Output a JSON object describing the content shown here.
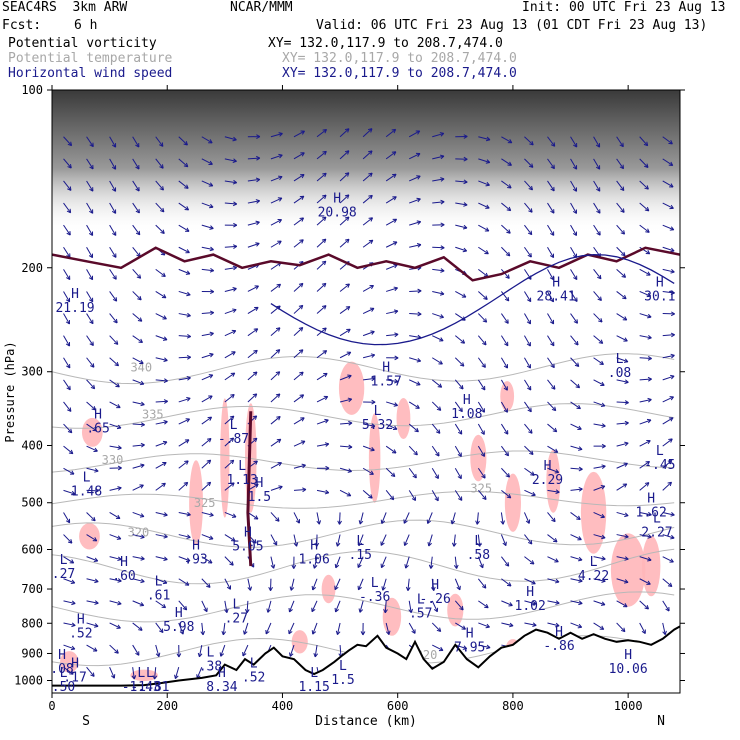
{
  "header": {
    "model": "SEAC4RS  3km ARW",
    "org": "NCAR/MMM",
    "init": "Init: 00 UTC Fri 23 Aug 13",
    "fcst_label": "Fcst:",
    "fcst_value": "6 h",
    "valid": "Valid: 06 UTC Fri 23 Aug 13 (01 CDT Fri 23 Aug 13)"
  },
  "fields": [
    {
      "name": "Potential vorticity",
      "xy": "XY= 132.0,117.9 to 208.7,474.0",
      "color": "#000000"
    },
    {
      "name": "Potential temperature",
      "xy": "XY= 132.0,117.9 to 208.7,474.0",
      "color": "#a8a8a8"
    },
    {
      "name": "Horizontal wind speed",
      "xy": "XY= 132.0,117.9 to 208.7,474.0",
      "color": "#1a1a8c"
    }
  ],
  "chart_data": {
    "type": "cross-section",
    "xlabel": "Distance (km)",
    "ylabel": "Pressure (hPa)",
    "x_ticks": [
      0,
      200,
      400,
      600,
      800,
      1000
    ],
    "y_ticks": [
      100,
      200,
      300,
      400,
      500,
      600,
      700,
      800,
      900,
      1000
    ],
    "xlim": [
      0,
      1090
    ],
    "ylim": [
      1050,
      100
    ],
    "y_scale": "log",
    "left_end_label": "S",
    "right_end_label": "N",
    "theta_contours": [
      {
        "label": "340",
        "x": 155,
        "p": 300
      },
      {
        "label": "335",
        "x": 175,
        "p": 360
      },
      {
        "label": "330",
        "x": 105,
        "p": 430
      },
      {
        "label": "325",
        "x": 265,
        "p": 508
      },
      {
        "label": "325",
        "x": 745,
        "p": 480
      },
      {
        "label": "320",
        "x": 150,
        "p": 570
      },
      {
        "label": "320",
        "x": 650,
        "p": 920
      }
    ],
    "extrema": [
      {
        "label": "H",
        "value": "21.19",
        "x": 40,
        "p": 225
      },
      {
        "label": "H",
        "value": "20.98",
        "x": 495,
        "p": 155
      },
      {
        "label": "H",
        "value": "28.41",
        "x": 875,
        "p": 215
      },
      {
        "label": "H",
        "value": "30.1",
        "x": 1055,
        "p": 215
      },
      {
        "label": "H",
        "value": ".65",
        "x": 80,
        "p": 360
      },
      {
        "label": "L",
        "value": "-.87",
        "x": 315,
        "p": 375
      },
      {
        "label": "H",
        "value": "1.57",
        "x": 580,
        "p": 300
      },
      {
        "label": "L",
        "value": "5.32",
        "x": 565,
        "p": 355
      },
      {
        "label": "H",
        "value": "1.08",
        "x": 720,
        "p": 340
      },
      {
        "label": "L",
        "value": ".08",
        "x": 985,
        "p": 290
      },
      {
        "label": "L",
        "value": "1.48",
        "x": 60,
        "p": 460
      },
      {
        "label": "L",
        "value": "1.13",
        "x": 330,
        "p": 440
      },
      {
        "label": "H",
        "value": "2.29",
        "x": 860,
        "p": 440
      },
      {
        "label": "L",
        "value": "-.45",
        "x": 1055,
        "p": 415
      },
      {
        "label": "H",
        "value": "1.5",
        "x": 360,
        "p": 470
      },
      {
        "label": "H",
        "value": "5.05",
        "x": 340,
        "p": 570
      },
      {
        "label": "H",
        "value": "1.62",
        "x": 1040,
        "p": 500
      },
      {
        "label": "L",
        "value": "2.27",
        "x": 1050,
        "p": 540
      },
      {
        "label": "H",
        "value": ".93",
        "x": 250,
        "p": 600
      },
      {
        "label": "H",
        "value": "1.06",
        "x": 455,
        "p": 600
      },
      {
        "label": "L",
        "value": ".15",
        "x": 535,
        "p": 590
      },
      {
        "label": "L",
        "value": ".58",
        "x": 740,
        "p": 590
      },
      {
        "label": "L",
        "value": ".27",
        "x": 20,
        "p": 635
      },
      {
        "label": "H",
        "value": ".60",
        "x": 125,
        "p": 640
      },
      {
        "label": "L",
        "value": "4.22",
        "x": 940,
        "p": 640
      },
      {
        "label": "L",
        "value": ".61",
        "x": 185,
        "p": 690
      },
      {
        "label": "L",
        "value": "-.36",
        "x": 560,
        "p": 695
      },
      {
        "label": "H",
        "value": "-.26",
        "x": 665,
        "p": 700
      },
      {
        "label": "H",
        "value": "1.02",
        "x": 830,
        "p": 720
      },
      {
        "label": "L",
        "value": ".57",
        "x": 640,
        "p": 740
      },
      {
        "label": "H",
        "value": "5.98",
        "x": 220,
        "p": 780
      },
      {
        "label": "L",
        "value": ".27",
        "x": 320,
        "p": 755
      },
      {
        "label": "H",
        "value": ".52",
        "x": 50,
        "p": 800
      },
      {
        "label": "H",
        "value": "7.95",
        "x": 725,
        "p": 845
      },
      {
        "label": "H",
        "value": "-.86",
        "x": 880,
        "p": 840
      },
      {
        "label": "L",
        "value": ".38",
        "x": 275,
        "p": 910
      },
      {
        "label": "H",
        "value": "10.06",
        "x": 1000,
        "p": 920
      },
      {
        "label": "L",
        "value": ".52",
        "x": 350,
        "p": 950
      },
      {
        "label": "H",
        "value": ".08",
        "x": 10,
        "p": 920
      },
      {
        "label": "H",
        "value": ".17",
        "x": 40,
        "p": 950
      },
      {
        "label": "L",
        "value": "1.15",
        "x": 455,
        "p": 1000
      },
      {
        "label": "L",
        "value": "1.5",
        "x": 505,
        "p": 960
      },
      {
        "label": "L",
        "value": "-1.43",
        "x": 155,
        "p": 1040
      },
      {
        "label": "L",
        "value": ".50",
        "x": 20,
        "p": 1080
      },
      {
        "label": "L",
        "value": "-1.81",
        "x": 170,
        "p": 1090
      },
      {
        "label": "H",
        "value": "8.34",
        "x": 295,
        "p": 1090
      }
    ],
    "terrain_pressure": [
      [
        0,
        1020
      ],
      [
        120,
        1020
      ],
      [
        160,
        1018
      ],
      [
        190,
        1010
      ],
      [
        220,
        1000
      ],
      [
        260,
        990
      ],
      [
        285,
        980
      ],
      [
        300,
        940
      ],
      [
        320,
        960
      ],
      [
        335,
        920
      ],
      [
        350,
        940
      ],
      [
        370,
        900
      ],
      [
        385,
        880
      ],
      [
        400,
        910
      ],
      [
        420,
        920
      ],
      [
        440,
        960
      ],
      [
        455,
        975
      ],
      [
        470,
        960
      ],
      [
        490,
        930
      ],
      [
        505,
        905
      ],
      [
        515,
        890
      ],
      [
        530,
        870
      ],
      [
        545,
        875
      ],
      [
        565,
        840
      ],
      [
        580,
        880
      ],
      [
        600,
        900
      ],
      [
        615,
        920
      ],
      [
        630,
        860
      ],
      [
        645,
        920
      ],
      [
        660,
        955
      ],
      [
        680,
        930
      ],
      [
        700,
        870
      ],
      [
        720,
        920
      ],
      [
        740,
        950
      ],
      [
        760,
        910
      ],
      [
        780,
        880
      ],
      [
        800,
        870
      ],
      [
        820,
        840
      ],
      [
        840,
        820
      ],
      [
        860,
        830
      ],
      [
        880,
        850
      ],
      [
        900,
        830
      ],
      [
        920,
        850
      ],
      [
        940,
        835
      ],
      [
        960,
        850
      ],
      [
        980,
        860
      ],
      [
        1000,
        855
      ],
      [
        1020,
        860
      ],
      [
        1040,
        870
      ],
      [
        1060,
        850
      ],
      [
        1080,
        820
      ],
      [
        1090,
        810
      ]
    ],
    "tropopause_pressure": [
      [
        0,
        190
      ],
      [
        60,
        195
      ],
      [
        120,
        200
      ],
      [
        180,
        185
      ],
      [
        230,
        195
      ],
      [
        280,
        190
      ],
      [
        330,
        200
      ],
      [
        380,
        195
      ],
      [
        430,
        198
      ],
      [
        480,
        190
      ],
      [
        530,
        200
      ],
      [
        580,
        195
      ],
      [
        630,
        200
      ],
      [
        680,
        192
      ],
      [
        730,
        210
      ],
      [
        780,
        205
      ],
      [
        830,
        195
      ],
      [
        880,
        200
      ],
      [
        930,
        190
      ],
      [
        980,
        195
      ],
      [
        1030,
        185
      ],
      [
        1090,
        190
      ]
    ]
  }
}
